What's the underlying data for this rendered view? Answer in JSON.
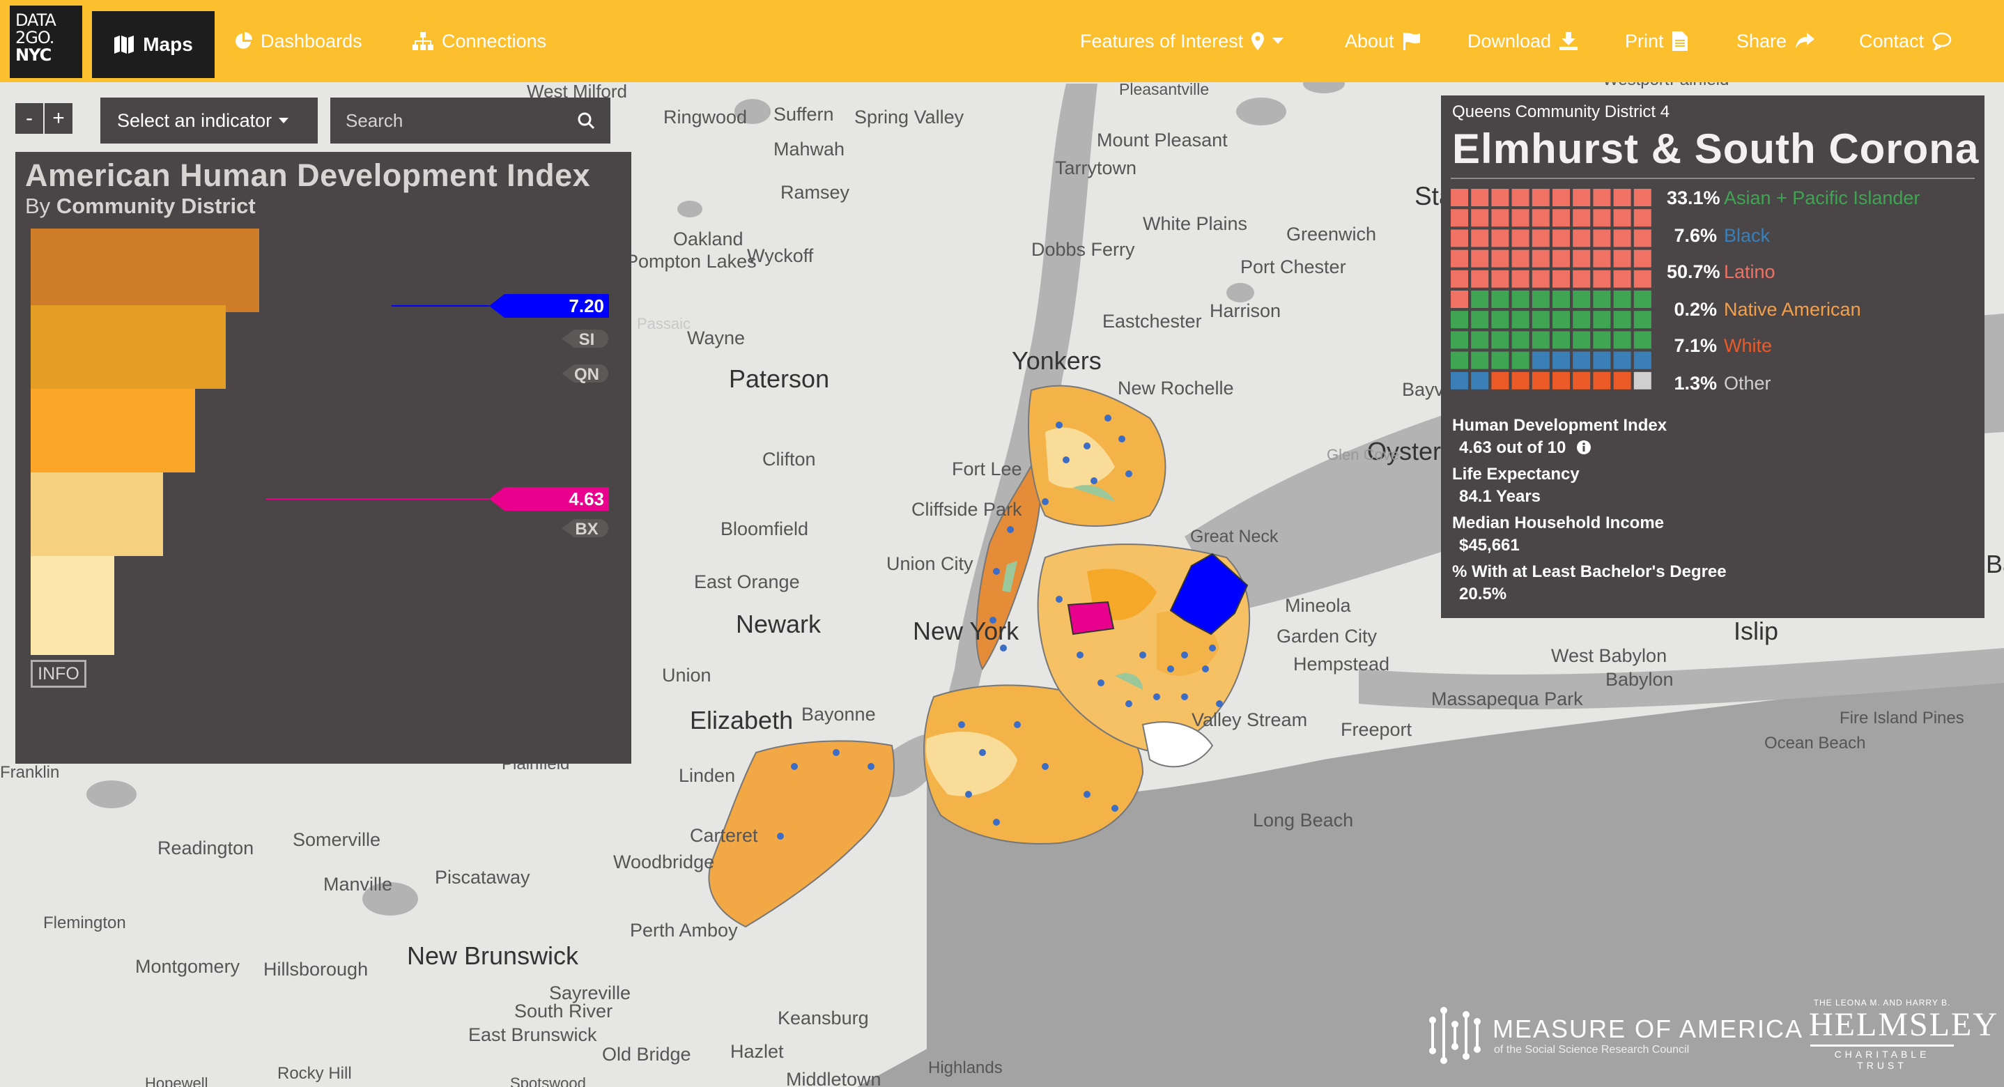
{
  "nav": {
    "logo": [
      "DATA",
      "2GO.",
      "NYC"
    ],
    "maps": "Maps",
    "dashboards": "Dashboards",
    "connections": "Connections",
    "features": "Features of Interest",
    "about": "About",
    "download": "Download",
    "print": "Print",
    "share": "Share",
    "contact": "Contact"
  },
  "controls": {
    "zoom_out": "-",
    "zoom_in": "+",
    "indicator": "Select an indicator",
    "search_placeholder": "Search"
  },
  "hdi_panel": {
    "title": "American Human Development Index",
    "subtitle_prefix": "By",
    "subtitle_bold": "Community District",
    "info": "INFO",
    "markers": [
      {
        "label": "7.20",
        "color": "#0000ff"
      },
      {
        "label": "4.63",
        "color": "#e8008c"
      }
    ],
    "borough_labels": [
      "SI",
      "QN",
      "BX"
    ],
    "band_colors": [
      "#d07d2a",
      "#e49e26",
      "#fba629",
      "#f6d180",
      "#fde6aa"
    ]
  },
  "district": {
    "subtitle": "Queens Community District 4",
    "title": "Elmhurst & South Corona",
    "demographics": [
      {
        "pct": "33.1%",
        "label": "Asian + Pacific Islander",
        "color": "#40a553"
      },
      {
        "pct": "7.6%",
        "label": "Black",
        "color": "#3b7fb9"
      },
      {
        "pct": "50.7%",
        "label": "Latino",
        "color": "#ef7264"
      },
      {
        "pct": "0.2%",
        "label": "Native American",
        "color": "#f4a04b"
      },
      {
        "pct": "7.1%",
        "label": "White",
        "color": "#ec5a27"
      },
      {
        "pct": "1.3%",
        "label": "Other",
        "color": "#cfcfcf"
      }
    ],
    "stats": [
      {
        "label": "Human Development Index",
        "value": "4.63 out of 10"
      },
      {
        "label": "Life Expectancy",
        "value": "84.1 Years"
      },
      {
        "label": "Median Household Income",
        "value": "$45,661"
      },
      {
        "label": "% With at Least Bachelor's Degree",
        "value": "20.5%"
      }
    ]
  },
  "map_labels": [
    "West Milford",
    "Pleasantville",
    "Westport",
    "Fairfield",
    "Ringwood",
    "Suffern",
    "Spring Valley",
    "Mahwah",
    "Mount Pleasant",
    "Tarrytown",
    "Ramsey",
    "Stamford",
    "White Plains",
    "Greenwich",
    "Oakland",
    "Wyckoff",
    "Pompton Lakes",
    "Dobbs Ferry",
    "Port Chester",
    "Wayne",
    "Eastchester",
    "Harrison",
    "Paterson",
    "Yonkers",
    "New Rochelle",
    "Bayville",
    "Oyster Bay",
    "Glen Cove",
    "Clifton",
    "Fort Lee",
    "Cliffside Park",
    "Great Neck",
    "Bloomfield",
    "Union City",
    "Mineola",
    "Garden City",
    "Hempstead",
    "East Orange",
    "Newark",
    "New York",
    "West Babylon",
    "Babylon",
    "Islip",
    "Union",
    "Massapequa Park",
    "Elizabeth",
    "Bayonne",
    "Valley Stream",
    "Freeport",
    "Fire Island Pines",
    "Ocean Beach",
    "Linden",
    "Carteret",
    "Woodbridge",
    "Long Beach",
    "Readington",
    "Somerville",
    "Manville",
    "Piscataway",
    "Flemington",
    "Perth Amboy",
    "New Brunswick",
    "Montgomery",
    "Hillsborough",
    "Sayreville",
    "South River",
    "East Brunswick",
    "Keansburg",
    "Old Bridge",
    "Hazlet",
    "Highlands",
    "Rocky Hill",
    "Middletown",
    "Spotswood",
    "Passaic",
    "Franklin",
    "Plainfield",
    "Hopewell",
    "Bay"
  ],
  "credits": {
    "moa_main": "MEASURE OF AMERICA",
    "moa_sub": "of the Social Science Research Council",
    "helmsley_top": "THE LEONA M. AND HARRY B.",
    "helmsley_main": "HELMSLEY",
    "helmsley_sub": "CHARITABLE TRUST"
  }
}
